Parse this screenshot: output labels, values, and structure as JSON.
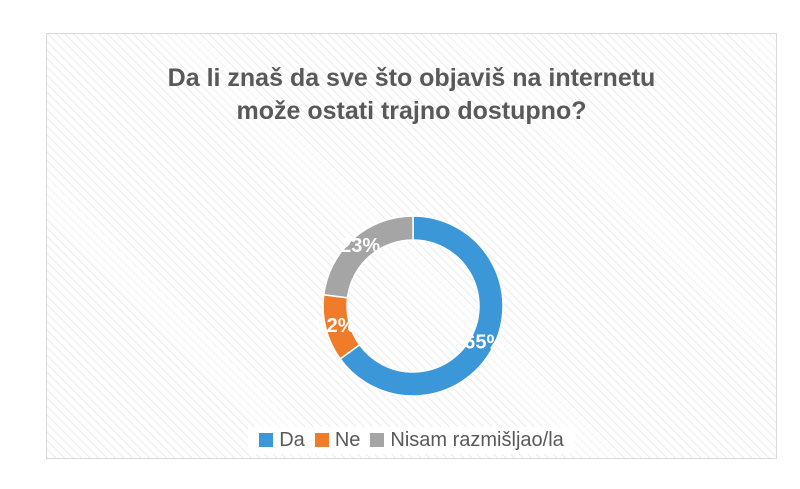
{
  "chart_data": {
    "type": "pie",
    "variant": "donut",
    "title_lines": [
      "Da li znaš da sve što objaviš na internetu",
      "može ostati trajno dostupno?"
    ],
    "categories": [
      "Da",
      "Ne",
      "Nisam razmišljao/la"
    ],
    "values": [
      65,
      12,
      23
    ],
    "data_labels": [
      "65%",
      "12%",
      "23%"
    ],
    "colors": [
      "#3c97d8",
      "#f07c2a",
      "#a5a5a5"
    ],
    "unit": "%",
    "legend_position": "bottom",
    "grid": false
  }
}
